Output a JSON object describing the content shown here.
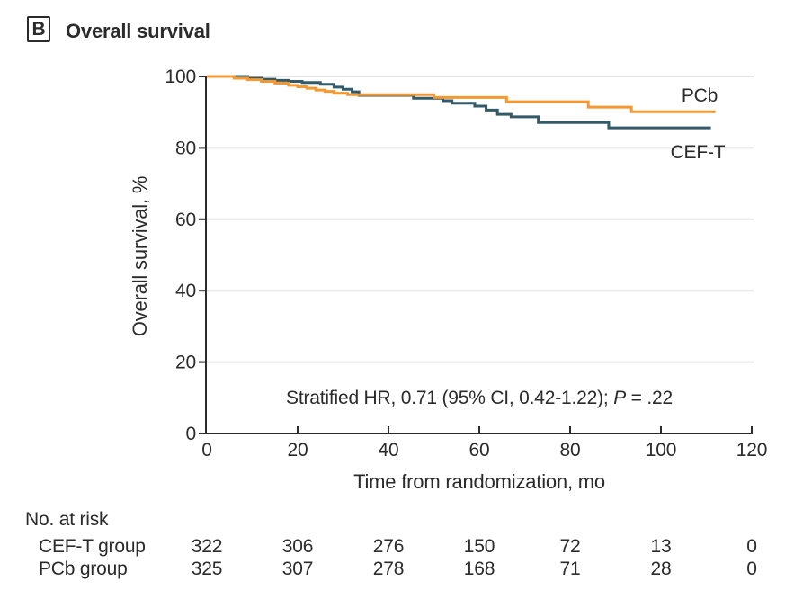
{
  "header": {
    "panel_label": "B",
    "title": "Overall survival"
  },
  "chart_data": {
    "type": "line",
    "subtype": "kaplan-meier-step",
    "title": "Overall survival",
    "xlabel": "Time from randomization, mo",
    "ylabel": "Overall survival, %",
    "xlim": [
      0,
      120
    ],
    "ylim": [
      0,
      100
    ],
    "x_ticks": [
      0,
      20,
      40,
      60,
      80,
      100,
      120
    ],
    "y_ticks": [
      0,
      20,
      40,
      60,
      80,
      100
    ],
    "grid": "horizontal-light",
    "annotation": {
      "prefix": "Stratified HR, 0.71 (95% CI, 0.42-1.22); ",
      "p": "P",
      "rest": " = .22"
    },
    "series": [
      {
        "name": "PCb",
        "color": "#F49831",
        "points": [
          [
            0,
            100
          ],
          [
            6,
            99.5
          ],
          [
            9,
            99.1
          ],
          [
            12,
            98.6
          ],
          [
            15,
            98.1
          ],
          [
            18,
            97.5
          ],
          [
            20,
            97.1
          ],
          [
            22,
            96.7
          ],
          [
            24,
            96.2
          ],
          [
            26,
            95.8
          ],
          [
            28,
            95.3
          ],
          [
            31,
            94.9
          ],
          [
            50,
            94.1
          ],
          [
            66,
            92.9
          ],
          [
            84,
            91.4
          ],
          [
            93.5,
            90.1
          ],
          [
            112,
            90.1
          ]
        ]
      },
      {
        "name": "CEF-T",
        "color": "#335A68",
        "points": [
          [
            0,
            100
          ],
          [
            9,
            99.5
          ],
          [
            12,
            99.2
          ],
          [
            15,
            98.9
          ],
          [
            18,
            98.6
          ],
          [
            21,
            98.3
          ],
          [
            25,
            97.8
          ],
          [
            28,
            97.0
          ],
          [
            30,
            96.4
          ],
          [
            32,
            95.7
          ],
          [
            33.5,
            94.7
          ],
          [
            45.5,
            93.9
          ],
          [
            52,
            93.2
          ],
          [
            54,
            92.5
          ],
          [
            59,
            91.7
          ],
          [
            61.5,
            90.6
          ],
          [
            64,
            89.4
          ],
          [
            67,
            88.7
          ],
          [
            73,
            87.1
          ],
          [
            88.5,
            85.6
          ],
          [
            111,
            85.6
          ]
        ]
      }
    ]
  },
  "risk_table": {
    "heading": "No. at risk",
    "rows": [
      {
        "label": "CEF-T group",
        "counts": [
          322,
          306,
          276,
          150,
          72,
          13,
          0
        ]
      },
      {
        "label": "PCb group",
        "counts": [
          325,
          307,
          278,
          168,
          71,
          28,
          0
        ]
      }
    ]
  },
  "colors": {
    "pcb_line": "#F49831",
    "ceft_line": "#335A68",
    "text": "#2B2B2B",
    "axis": "#2B2B2B",
    "gridline": "#E4E4E4",
    "background": "#FFFFFF"
  }
}
